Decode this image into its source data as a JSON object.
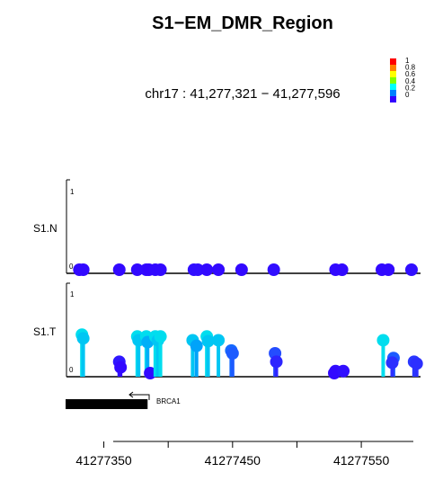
{
  "chart_data": {
    "type": "scatter",
    "title": "S1−EM_DMR_Region",
    "subtitle": "chr17 : 41,277,321 − 41,277,596",
    "xlim": [
      41277321,
      41277596
    ],
    "x_ticks": [
      41277350,
      41277400,
      41277450,
      41277500,
      41277550,
      41277600
    ],
    "x_tick_labels": [
      "41277350",
      "41277450",
      "41277550"
    ],
    "color_scale": {
      "labels": [
        "1",
        "0.8",
        "0.6",
        "0.4",
        "0.2",
        "0"
      ],
      "colors": [
        "#ff0000",
        "#ff8000",
        "#ffff00",
        "#80ff00",
        "#00ffff",
        "#0080ff",
        "#3300ff"
      ]
    },
    "tracks": [
      {
        "name": "S1.N",
        "ylim": [
          0,
          1
        ],
        "y_tick_labels": [
          "1",
          "0"
        ],
        "points": [
          {
            "x": 41277331,
            "y": 0.02
          },
          {
            "x": 41277334,
            "y": 0.02
          },
          {
            "x": 41277362,
            "y": 0.02
          },
          {
            "x": 41277376,
            "y": 0.02
          },
          {
            "x": 41277383,
            "y": 0.02
          },
          {
            "x": 41277385,
            "y": 0.01
          },
          {
            "x": 41277390,
            "y": 0.02
          },
          {
            "x": 41277394,
            "y": 0.02
          },
          {
            "x": 41277420,
            "y": 0.03
          },
          {
            "x": 41277423,
            "y": 0.03
          },
          {
            "x": 41277430,
            "y": 0.02
          },
          {
            "x": 41277439,
            "y": 0.02
          },
          {
            "x": 41277457,
            "y": 0.02
          },
          {
            "x": 41277482,
            "y": 0.03
          },
          {
            "x": 41277530,
            "y": 0.02
          },
          {
            "x": 41277535,
            "y": 0.02
          },
          {
            "x": 41277566,
            "y": 0.02
          },
          {
            "x": 41277571,
            "y": 0.02
          },
          {
            "x": 41277589,
            "y": 0.03
          }
        ]
      },
      {
        "name": "S1.T",
        "ylim": [
          0,
          1
        ],
        "y_tick_labels": [
          "1",
          "0"
        ],
        "points": [
          {
            "x": 41277333,
            "y": 0.45,
            "v": 0.32
          },
          {
            "x": 41277334,
            "y": 0.41,
            "v": 0.3
          },
          {
            "x": 41277362,
            "y": 0.16,
            "v": 0.05
          },
          {
            "x": 41277363,
            "y": 0.1,
            "v": 0.02
          },
          {
            "x": 41277376,
            "y": 0.43,
            "v": 0.32
          },
          {
            "x": 41277377,
            "y": 0.39,
            "v": 0.3
          },
          {
            "x": 41277383,
            "y": 0.43,
            "v": 0.32
          },
          {
            "x": 41277384,
            "y": 0.37,
            "v": 0.28
          },
          {
            "x": 41277386,
            "y": 0.0,
            "v": 0.02
          },
          {
            "x": 41277390,
            "y": 0.43,
            "v": 0.32
          },
          {
            "x": 41277392,
            "y": 0.39,
            "v": 0.3
          },
          {
            "x": 41277394,
            "y": 0.43,
            "v": 0.32
          },
          {
            "x": 41277419,
            "y": 0.39,
            "v": 0.3
          },
          {
            "x": 41277422,
            "y": 0.33,
            "v": 0.27
          },
          {
            "x": 41277430,
            "y": 0.43,
            "v": 0.32
          },
          {
            "x": 41277431,
            "y": 0.38,
            "v": 0.3
          },
          {
            "x": 41277439,
            "y": 0.39,
            "v": 0.3
          },
          {
            "x": 41277449,
            "y": 0.28,
            "v": 0.2
          },
          {
            "x": 41277450,
            "y": 0.25,
            "v": 0.18
          },
          {
            "x": 41277483,
            "y": 0.25,
            "v": 0.16
          },
          {
            "x": 41277484,
            "y": 0.16,
            "v": 0.08
          },
          {
            "x": 41277530,
            "y": 0.06,
            "v": 0.03
          },
          {
            "x": 41277529,
            "y": 0.0,
            "v": 0.02
          },
          {
            "x": 41277536,
            "y": 0.06,
            "v": 0.03
          },
          {
            "x": 41277567,
            "y": 0.39,
            "v": 0.32
          },
          {
            "x": 41277575,
            "y": 0.2,
            "v": 0.18
          },
          {
            "x": 41277574,
            "y": 0.15,
            "v": 0.1
          },
          {
            "x": 41277591,
            "y": 0.16,
            "v": 0.12
          },
          {
            "x": 41277593,
            "y": 0.14,
            "v": 0.1
          }
        ]
      }
    ],
    "gene": {
      "name": "BRCA1",
      "start": 41277321,
      "end": 41277384,
      "strand": "-"
    }
  }
}
